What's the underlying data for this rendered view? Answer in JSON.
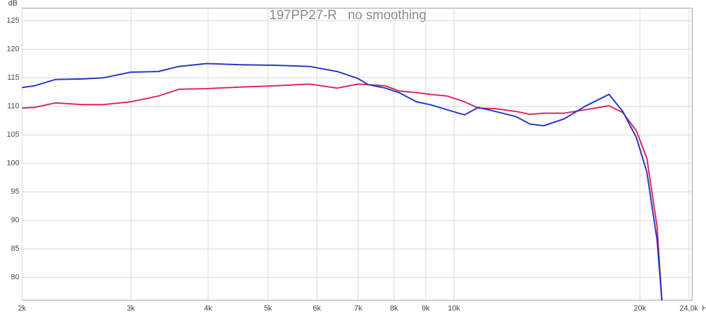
{
  "chart_data": {
    "type": "line",
    "title": "197PP27-R   no smoothing",
    "y_label": "dB",
    "x_label": "Hz",
    "log_x": true,
    "grid": true,
    "x": [
      2000,
      2094,
      2262,
      2506,
      2706,
      3000,
      3322,
      3588,
      3977,
      4522,
      5139,
      5843,
      6473,
      6988,
      7265,
      7745,
      8152,
      8693,
      9150,
      9756,
      10400,
      10950,
      11670,
      12610,
      13270,
      13970,
      15080,
      16290,
      17820,
      18760,
      19740,
      20520,
      21320,
      21700
    ],
    "series": [
      {
        "name": "red",
        "color": "#dc2757",
        "values": [
          109.7,
          109.8,
          110.6,
          110.3,
          110.3,
          110.8,
          111.8,
          113.0,
          113.1,
          113.4,
          113.6,
          113.9,
          113.2,
          113.9,
          113.8,
          113.6,
          112.7,
          112.4,
          112.1,
          111.8,
          110.8,
          109.7,
          109.6,
          109.1,
          108.6,
          108.8,
          108.8,
          109.4,
          110.1,
          108.9,
          105.7,
          100.9,
          88.9,
          76.0
        ]
      },
      {
        "name": "blue",
        "color": "#2436c8",
        "values": [
          113.3,
          113.6,
          114.7,
          114.8,
          115.0,
          116.0,
          116.1,
          117.0,
          117.5,
          117.3,
          117.2,
          117.0,
          116.1,
          114.9,
          113.8,
          113.2,
          112.4,
          110.8,
          110.3,
          109.4,
          108.5,
          109.8,
          109.1,
          108.2,
          106.9,
          106.6,
          107.8,
          110.0,
          112.1,
          109.1,
          104.5,
          98.5,
          86.5,
          76.0
        ]
      }
    ],
    "xlim": [
      2000,
      24300
    ],
    "xticks": [
      {
        "value": 2000,
        "label": "2k"
      },
      {
        "value": 3000,
        "label": "3k"
      },
      {
        "value": 4000,
        "label": "4k"
      },
      {
        "value": 5000,
        "label": "5k"
      },
      {
        "value": 6000,
        "label": "6k"
      },
      {
        "value": 7000,
        "label": "7k"
      },
      {
        "value": 8000,
        "label": "8k"
      },
      {
        "value": 9000,
        "label": "9k"
      },
      {
        "value": 10000,
        "label": "10k"
      },
      {
        "value": 20000,
        "label": "20k"
      },
      {
        "value": 24000,
        "label": "24,0k"
      }
    ],
    "ylim": [
      76,
      127.2
    ],
    "yticks": [
      80,
      85,
      90,
      95,
      100,
      105,
      110,
      115,
      120,
      125
    ]
  }
}
